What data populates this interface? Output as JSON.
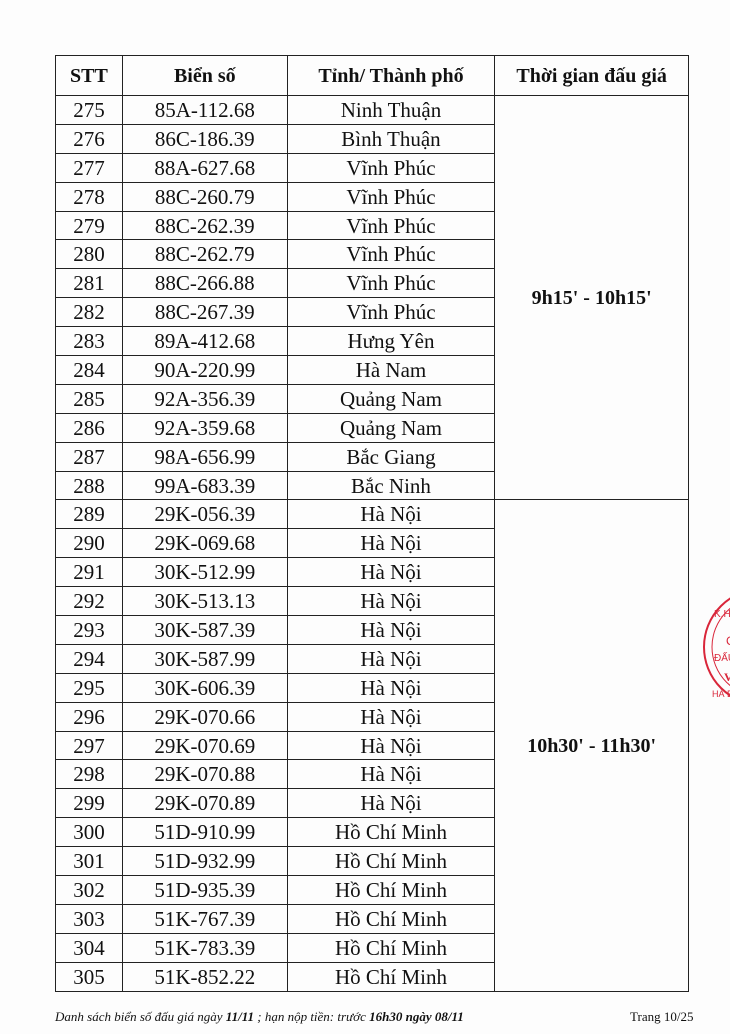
{
  "table": {
    "headers": [
      "STT",
      "Biển số",
      "Tỉnh/ Thành phố",
      "Thời gian đấu giá"
    ],
    "groups": [
      {
        "time": "9h15' - 10h15'",
        "rows": [
          [
            "275",
            "85A-112.68",
            "Ninh Thuận"
          ],
          [
            "276",
            "86C-186.39",
            "Bình Thuận"
          ],
          [
            "277",
            "88A-627.68",
            "Vĩnh Phúc"
          ],
          [
            "278",
            "88C-260.79",
            "Vĩnh Phúc"
          ],
          [
            "279",
            "88C-262.39",
            "Vĩnh Phúc"
          ],
          [
            "280",
            "88C-262.79",
            "Vĩnh Phúc"
          ],
          [
            "281",
            "88C-266.88",
            "Vĩnh Phúc"
          ],
          [
            "282",
            "88C-267.39",
            "Vĩnh Phúc"
          ],
          [
            "283",
            "89A-412.68",
            "Hưng Yên"
          ],
          [
            "284",
            "90A-220.99",
            "Hà Nam"
          ],
          [
            "285",
            "92A-356.39",
            "Quảng Nam"
          ],
          [
            "286",
            "92A-359.68",
            "Quảng Nam"
          ],
          [
            "287",
            "98A-656.99",
            "Bắc Giang"
          ],
          [
            "288",
            "99A-683.39",
            "Bắc Ninh"
          ]
        ]
      },
      {
        "time": "10h30' - 11h30'",
        "rows": [
          [
            "289",
            "29K-056.39",
            "Hà Nội"
          ],
          [
            "290",
            "29K-069.68",
            "Hà Nội"
          ],
          [
            "291",
            "30K-512.99",
            "Hà Nội"
          ],
          [
            "292",
            "30K-513.13",
            "Hà Nội"
          ],
          [
            "293",
            "30K-587.39",
            "Hà Nội"
          ],
          [
            "294",
            "30K-587.99",
            "Hà Nội"
          ],
          [
            "295",
            "30K-606.39",
            "Hà Nội"
          ],
          [
            "296",
            "29K-070.66",
            "Hà Nội"
          ],
          [
            "297",
            "29K-070.69",
            "Hà Nội"
          ],
          [
            "298",
            "29K-070.88",
            "Hà Nội"
          ],
          [
            "299",
            "29K-070.89",
            "Hà Nội"
          ],
          [
            "300",
            "51D-910.99",
            "Hồ Chí Minh"
          ],
          [
            "301",
            "51D-932.99",
            "Hồ Chí Minh"
          ],
          [
            "302",
            "51D-935.39",
            "Hồ Chí Minh"
          ],
          [
            "303",
            "51K-767.39",
            "Hồ Chí Minh"
          ],
          [
            "304",
            "51K-783.39",
            "Hồ Chí Minh"
          ],
          [
            "305",
            "51K-852.22",
            "Hồ Chí Minh"
          ]
        ]
      }
    ]
  },
  "footer": {
    "text1": "Danh sách biển số đấu giá ngày ",
    "date": "11/11",
    "text2": " ; hạn nộp tiền: trước ",
    "deadline": "16h30 ngày 08/11",
    "page": "Trang 10/25"
  },
  "stamp": {
    "color": "#d9263a",
    "text": "C.K.H ... C ĐẤU VI ... HÀ Đ"
  }
}
